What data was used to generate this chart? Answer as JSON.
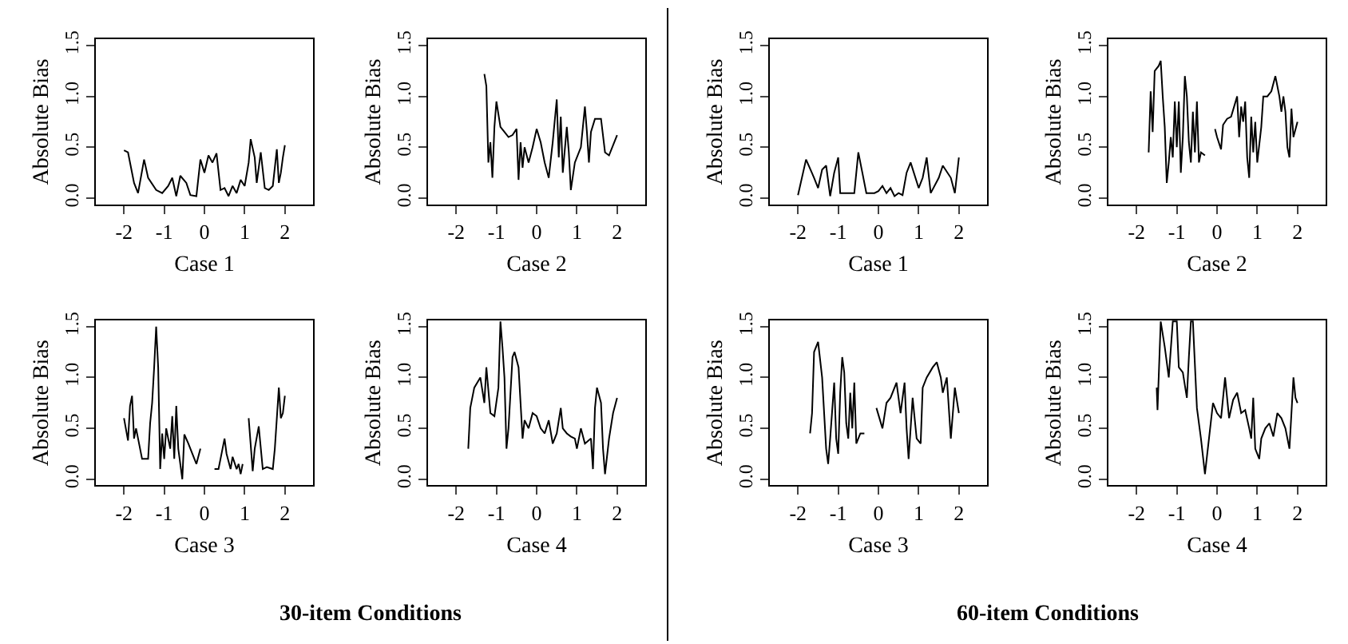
{
  "chart_data": [
    {
      "type": "line",
      "xlabel": "Case 1",
      "ylabel": "Absolute Bias",
      "color": "#000000",
      "xlim": [
        -2.7,
        2.7
      ],
      "ylim": [
        -0.06,
        1.56
      ],
      "xticks": [
        -2,
        -1,
        0,
        1,
        2
      ],
      "yticks": [
        {
          "value": 0,
          "label": "0.0"
        },
        {
          "value": 0.5,
          "label": "0.5"
        },
        {
          "value": 1,
          "label": "1.0"
        },
        {
          "value": 1.5,
          "label": "1.5"
        }
      ],
      "x": [
        -2.0,
        -1.9,
        -1.75,
        -1.65,
        -1.5,
        -1.4,
        -1.2,
        -1.05,
        -0.9,
        -0.8,
        -0.7,
        -0.6,
        -0.45,
        -0.35,
        -0.2,
        -0.1,
        0.0,
        0.1,
        0.2,
        0.3,
        0.4,
        0.5,
        0.6,
        0.7,
        0.8,
        0.9,
        1.0,
        1.1,
        1.15,
        1.25,
        1.3,
        1.4,
        1.5,
        1.6,
        1.7,
        1.8,
        1.85,
        1.9,
        1.95,
        2.0
      ],
      "values": [
        0.47,
        0.45,
        0.15,
        0.05,
        0.38,
        0.2,
        0.08,
        0.05,
        0.12,
        0.2,
        0.02,
        0.22,
        0.15,
        0.03,
        0.02,
        0.38,
        0.25,
        0.42,
        0.35,
        0.44,
        0.08,
        0.1,
        0.02,
        0.12,
        0.05,
        0.18,
        0.12,
        0.35,
        0.58,
        0.4,
        0.15,
        0.45,
        0.1,
        0.08,
        0.12,
        0.48,
        0.15,
        0.25,
        0.4,
        0.52
      ]
    },
    {
      "type": "line",
      "xlabel": "Case 2",
      "ylabel": "Absolute Bias",
      "color": "#000000",
      "xlim": [
        -2.7,
        2.7
      ],
      "ylim": [
        -0.06,
        1.56
      ],
      "xticks": [
        -2,
        -1,
        0,
        1,
        2
      ],
      "yticks": [
        {
          "value": 0,
          "label": "0.0"
        },
        {
          "value": 0.5,
          "label": "0.5"
        },
        {
          "value": 1,
          "label": "1.0"
        },
        {
          "value": 1.5,
          "label": "1.5"
        }
      ],
      "x": [
        -1.3,
        -1.25,
        -1.2,
        -1.15,
        -1.1,
        -1.05,
        -1.0,
        -0.9,
        -0.8,
        -0.7,
        -0.6,
        -0.5,
        -0.45,
        -0.4,
        -0.35,
        -0.3,
        -0.2,
        -0.1,
        0.0,
        0.1,
        0.2,
        0.3,
        0.4,
        0.5,
        0.55,
        0.6,
        0.65,
        0.75,
        0.8,
        0.85,
        0.95,
        1.1,
        1.2,
        1.25,
        1.3,
        1.35,
        1.45,
        1.6,
        1.7,
        1.8,
        2.0
      ],
      "values": [
        1.22,
        1.1,
        0.35,
        0.55,
        0.2,
        0.7,
        0.95,
        0.7,
        0.65,
        0.6,
        0.62,
        0.68,
        0.18,
        0.55,
        0.3,
        0.5,
        0.35,
        0.5,
        0.68,
        0.55,
        0.35,
        0.2,
        0.55,
        0.97,
        0.4,
        0.8,
        0.25,
        0.7,
        0.45,
        0.08,
        0.35,
        0.5,
        0.9,
        0.65,
        0.35,
        0.65,
        0.78,
        0.78,
        0.45,
        0.42,
        0.62
      ]
    },
    {
      "type": "line",
      "xlabel": "Case 3",
      "ylabel": "Absolute Bias",
      "color": "#000000",
      "xlim": [
        -2.7,
        2.7
      ],
      "ylim": [
        -0.06,
        1.56
      ],
      "xticks": [
        -2,
        -1,
        0,
        1,
        2
      ],
      "yticks": [
        {
          "value": 0,
          "label": "0.0"
        },
        {
          "value": 0.5,
          "label": "0.5"
        },
        {
          "value": 1,
          "label": "1.0"
        },
        {
          "value": 1.5,
          "label": "1.5"
        }
      ],
      "annotations": [
        "30-item Conditions"
      ],
      "x": [
        -2.0,
        -1.9,
        -1.85,
        -1.8,
        -1.75,
        -1.7,
        -1.55,
        -1.4,
        -1.35,
        -1.3,
        -1.25,
        -1.2,
        -1.15,
        -1.1,
        -1.05,
        -1.0,
        -0.95,
        -0.85,
        -0.8,
        -0.75,
        -0.7,
        -0.65,
        -0.55,
        -0.5,
        -0.4,
        -0.3,
        -0.2,
        -0.1,
        0.1,
        0.25,
        0.35,
        0.4,
        0.5,
        0.55,
        0.65,
        0.7,
        0.8,
        0.85,
        0.9,
        0.95,
        1.03,
        1.1,
        1.2,
        1.25,
        1.35,
        1.45,
        1.55,
        1.7,
        1.75,
        1.85,
        1.9,
        1.95,
        2.0
      ],
      "values": [
        0.6,
        0.38,
        0.72,
        0.82,
        0.4,
        0.5,
        0.2,
        0.2,
        0.55,
        0.75,
        1.1,
        1.5,
        1.1,
        0.1,
        0.45,
        0.2,
        0.5,
        0.3,
        0.62,
        0.2,
        0.72,
        0.3,
        0.0,
        0.44,
        0.35,
        0.25,
        0.15,
        0.3,
        null,
        0.1,
        0.1,
        0.2,
        0.4,
        0.25,
        0.1,
        0.22,
        0.1,
        0.15,
        0.05,
        0.15,
        null,
        0.6,
        0.08,
        0.3,
        0.52,
        0.1,
        0.12,
        0.1,
        0.3,
        0.9,
        0.6,
        0.65,
        0.82
      ]
    },
    {
      "type": "line",
      "xlabel": "Case 4",
      "ylabel": "Absolute Bias",
      "color": "#000000",
      "xlim": [
        -2.7,
        2.7
      ],
      "ylim": [
        -0.06,
        1.56
      ],
      "xticks": [
        -2,
        -1,
        0,
        1,
        2
      ],
      "yticks": [
        {
          "value": 0,
          "label": "0.0"
        },
        {
          "value": 0.5,
          "label": "0.5"
        },
        {
          "value": 1,
          "label": "1.0"
        },
        {
          "value": 1.5,
          "label": "1.5"
        }
      ],
      "x": [
        -1.7,
        -1.65,
        -1.55,
        -1.4,
        -1.3,
        -1.25,
        -1.15,
        -1.05,
        -0.95,
        -0.9,
        -0.85,
        -0.8,
        -0.75,
        -0.7,
        -0.6,
        -0.55,
        -0.45,
        -0.35,
        -0.3,
        -0.2,
        -0.1,
        0.0,
        0.1,
        0.2,
        0.3,
        0.4,
        0.5,
        0.6,
        0.65,
        0.75,
        0.85,
        0.95,
        1.0,
        1.1,
        1.2,
        1.35,
        1.4,
        1.45,
        1.5,
        1.6,
        1.65,
        1.7,
        1.8,
        1.9,
        2.0
      ],
      "values": [
        0.3,
        0.7,
        0.9,
        1.0,
        0.75,
        1.1,
        0.65,
        0.62,
        0.9,
        1.55,
        1.3,
        1.0,
        0.3,
        0.5,
        1.2,
        1.25,
        1.1,
        0.4,
        0.58,
        0.5,
        0.65,
        0.62,
        0.5,
        0.45,
        0.58,
        0.35,
        0.45,
        0.7,
        0.5,
        0.45,
        0.42,
        0.4,
        0.3,
        0.5,
        0.35,
        0.4,
        0.1,
        0.7,
        0.9,
        0.75,
        0.3,
        0.05,
        0.4,
        0.65,
        0.8
      ]
    },
    {
      "type": "line",
      "xlabel": "Case 1",
      "ylabel": "Absolute Bias",
      "color": "#000000",
      "xlim": [
        -2.7,
        2.7
      ],
      "ylim": [
        -0.06,
        1.56
      ],
      "xticks": [
        -2,
        -1,
        0,
        1,
        2
      ],
      "yticks": [
        {
          "value": 0,
          "label": "0.0"
        },
        {
          "value": 0.5,
          "label": "0.5"
        },
        {
          "value": 1,
          "label": "1.0"
        },
        {
          "value": 1.5,
          "label": "1.5"
        }
      ],
      "x": [
        -2.0,
        -1.8,
        -1.6,
        -1.5,
        -1.4,
        -1.3,
        -1.2,
        -1.1,
        -1.0,
        -0.95,
        -0.8,
        -0.6,
        -0.5,
        -0.4,
        -0.3,
        -0.1,
        0.0,
        0.1,
        0.2,
        0.3,
        0.4,
        0.5,
        0.6,
        0.7,
        0.8,
        1.0,
        1.1,
        1.2,
        1.3,
        1.5,
        1.6,
        1.8,
        1.9,
        2.0
      ],
      "values": [
        0.03,
        0.38,
        0.2,
        0.1,
        0.28,
        0.32,
        0.02,
        0.25,
        0.4,
        0.05,
        0.05,
        0.05,
        0.45,
        0.25,
        0.05,
        0.05,
        0.07,
        0.12,
        0.05,
        0.1,
        0.02,
        0.05,
        0.03,
        0.25,
        0.35,
        0.1,
        0.2,
        0.4,
        0.05,
        0.2,
        0.32,
        0.2,
        0.05,
        0.4
      ]
    },
    {
      "type": "line",
      "xlabel": "Case 2",
      "ylabel": "Absolute Bias",
      "color": "#000000",
      "xlim": [
        -2.7,
        2.7
      ],
      "ylim": [
        -0.06,
        1.56
      ],
      "xticks": [
        -2,
        -1,
        0,
        1,
        2
      ],
      "yticks": [
        {
          "value": 0,
          "label": "0.0"
        },
        {
          "value": 0.5,
          "label": "0.5"
        },
        {
          "value": 1,
          "label": "1.0"
        },
        {
          "value": 1.5,
          "label": "1.5"
        }
      ],
      "x": [
        -1.7,
        -1.65,
        -1.6,
        -1.55,
        -1.45,
        -1.4,
        -1.35,
        -1.3,
        -1.25,
        -1.2,
        -1.15,
        -1.1,
        -1.05,
        -1.0,
        -0.95,
        -0.9,
        -0.85,
        -0.8,
        -0.75,
        -0.7,
        -0.65,
        -0.6,
        -0.55,
        -0.5,
        -0.45,
        -0.4,
        -0.3,
        -0.2,
        -0.05,
        0.0,
        0.1,
        0.15,
        0.25,
        0.35,
        0.5,
        0.55,
        0.6,
        0.65,
        0.7,
        0.75,
        0.8,
        0.85,
        0.9,
        0.95,
        1.0,
        1.1,
        1.15,
        1.25,
        1.35,
        1.45,
        1.55,
        1.6,
        1.65,
        1.7,
        1.75,
        1.8,
        1.85,
        1.9,
        2.0
      ],
      "values": [
        0.45,
        1.05,
        0.65,
        1.25,
        1.3,
        1.35,
        1.0,
        0.7,
        0.15,
        0.35,
        0.6,
        0.4,
        0.95,
        0.5,
        0.95,
        0.25,
        0.6,
        1.2,
        1.0,
        0.55,
        0.35,
        0.85,
        0.45,
        0.95,
        0.35,
        0.45,
        0.42,
        null,
        0.68,
        0.6,
        0.48,
        0.72,
        0.78,
        0.8,
        1.0,
        0.6,
        0.9,
        0.75,
        0.95,
        0.4,
        0.2,
        0.8,
        0.45,
        0.75,
        0.35,
        0.7,
        1.0,
        1.0,
        1.05,
        1.2,
        1.0,
        0.85,
        1.0,
        0.85,
        0.5,
        0.4,
        0.88,
        0.6,
        0.75
      ]
    },
    {
      "type": "line",
      "xlabel": "Case 3",
      "ylabel": "Absolute Bias",
      "color": "#000000",
      "xlim": [
        -2.7,
        2.7
      ],
      "ylim": [
        -0.06,
        1.56
      ],
      "xticks": [
        -2,
        -1,
        0,
        1,
        2
      ],
      "yticks": [
        {
          "value": 0,
          "label": "0.0"
        },
        {
          "value": 0.5,
          "label": "0.5"
        },
        {
          "value": 1,
          "label": "1.0"
        },
        {
          "value": 1.5,
          "label": "1.5"
        }
      ],
      "annotations": [
        "60-item Conditions"
      ],
      "x": [
        -1.7,
        -1.65,
        -1.6,
        -1.5,
        -1.4,
        -1.35,
        -1.3,
        -1.25,
        -1.2,
        -1.1,
        -1.05,
        -1.0,
        -0.95,
        -0.9,
        -0.85,
        -0.8,
        -0.75,
        -0.7,
        -0.65,
        -0.6,
        -0.55,
        -0.45,
        -0.35,
        -0.2,
        -0.05,
        0.1,
        0.2,
        0.3,
        0.45,
        0.55,
        0.65,
        0.7,
        0.75,
        0.85,
        0.95,
        1.05,
        1.1,
        1.2,
        1.35,
        1.45,
        1.55,
        1.6,
        1.7,
        1.8,
        1.85,
        1.9,
        2.0
      ],
      "values": [
        0.45,
        0.65,
        1.25,
        1.35,
        1.0,
        0.65,
        0.3,
        0.15,
        0.4,
        0.95,
        0.4,
        0.25,
        0.85,
        1.2,
        1.05,
        0.55,
        0.4,
        0.85,
        0.5,
        0.95,
        0.35,
        0.45,
        0.45,
        null,
        0.7,
        0.5,
        0.75,
        0.8,
        0.95,
        0.65,
        0.95,
        0.5,
        0.2,
        0.8,
        0.4,
        0.35,
        0.9,
        1.0,
        1.1,
        1.15,
        1.0,
        0.85,
        1.0,
        0.4,
        0.65,
        0.9,
        0.65
      ]
    },
    {
      "type": "line",
      "xlabel": "Case 4",
      "ylabel": "Absolute Bias",
      "color": "#000000",
      "xlim": [
        -2.7,
        2.7
      ],
      "ylim": [
        -0.06,
        1.56
      ],
      "xticks": [
        -2,
        -1,
        0,
        1,
        2
      ],
      "yticks": [
        {
          "value": 0,
          "label": "0.0"
        },
        {
          "value": 0.5,
          "label": "0.5"
        },
        {
          "value": 1,
          "label": "1.0"
        },
        {
          "value": 1.5,
          "label": "1.5"
        }
      ],
      "x": [
        -1.5,
        -1.48,
        -1.4,
        -1.3,
        -1.2,
        -1.1,
        -1.0,
        -0.95,
        -0.85,
        -0.75,
        -0.7,
        -0.65,
        -0.6,
        -0.5,
        -0.4,
        -0.3,
        -0.2,
        -0.1,
        0.0,
        0.1,
        0.2,
        0.3,
        0.4,
        0.5,
        0.6,
        0.7,
        0.8,
        0.85,
        0.9,
        0.95,
        1.05,
        1.1,
        1.2,
        1.3,
        1.4,
        1.5,
        1.6,
        1.7,
        1.8,
        1.9,
        1.95,
        2.0
      ],
      "values": [
        0.9,
        0.68,
        1.55,
        1.3,
        1.0,
        1.55,
        1.55,
        1.1,
        1.05,
        0.8,
        1.2,
        1.55,
        1.55,
        0.7,
        0.4,
        0.05,
        0.4,
        0.75,
        0.65,
        0.6,
        1.0,
        0.6,
        0.78,
        0.85,
        0.65,
        0.68,
        0.5,
        0.4,
        0.8,
        0.3,
        0.2,
        0.4,
        0.5,
        0.55,
        0.42,
        0.65,
        0.6,
        0.5,
        0.3,
        1.0,
        0.8,
        0.75
      ]
    }
  ]
}
